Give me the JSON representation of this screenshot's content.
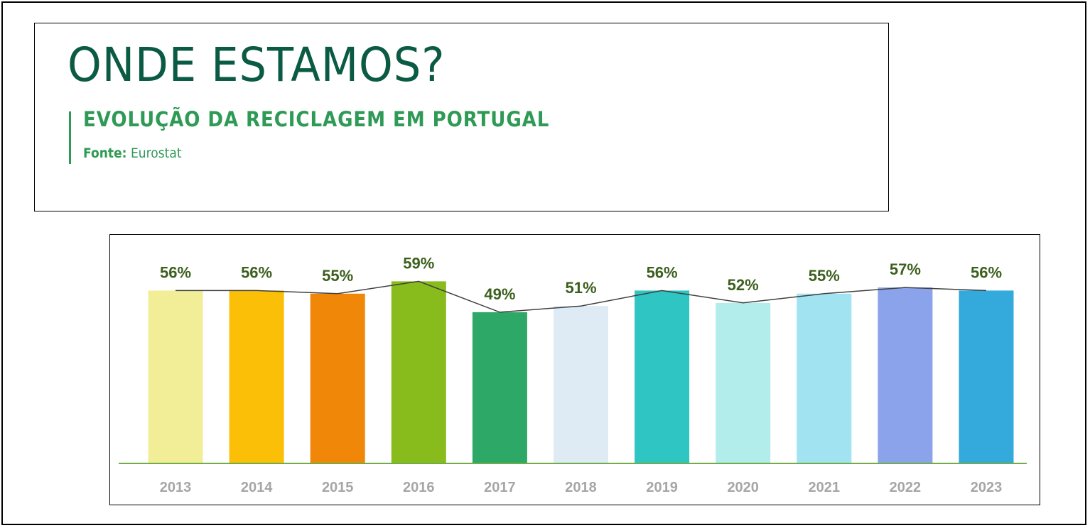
{
  "header": {
    "title": "ONDE ESTAMOS?",
    "subtitle": "EVOLUÇÃO DA RECICLAGEM EM PORTUGAL",
    "source_label": "Fonte:",
    "source_value": "Eurostat"
  },
  "colors": {
    "title": "#0b5a44",
    "accent": "#2e9a55",
    "value_label": "#3b5f1c",
    "axis_label": "#a6a6a6",
    "baseline": "#70ad47",
    "trend_line": "#404040"
  },
  "chart_data": {
    "type": "bar",
    "categories": [
      "2013",
      "2014",
      "2015",
      "2016",
      "2017",
      "2018",
      "2019",
      "2020",
      "2021",
      "2022",
      "2023"
    ],
    "values": [
      56,
      56,
      55,
      59,
      49,
      51,
      56,
      52,
      55,
      57,
      56
    ],
    "labels": [
      "56%",
      "56%",
      "55%",
      "59%",
      "49%",
      "51%",
      "56%",
      "52%",
      "55%",
      "57%",
      "56%"
    ],
    "bar_colors": [
      "#f2ee98",
      "#fbbf08",
      "#f18708",
      "#87bc1c",
      "#2ea866",
      "#deebf5",
      "#2ec5c2",
      "#b2eceb",
      "#a2e3f2",
      "#8aa3eb",
      "#33a9dc"
    ],
    "overlay_line": "trend line connecting bar tops",
    "ylim": [
      0,
      59
    ],
    "grid": false,
    "legend": "none"
  }
}
